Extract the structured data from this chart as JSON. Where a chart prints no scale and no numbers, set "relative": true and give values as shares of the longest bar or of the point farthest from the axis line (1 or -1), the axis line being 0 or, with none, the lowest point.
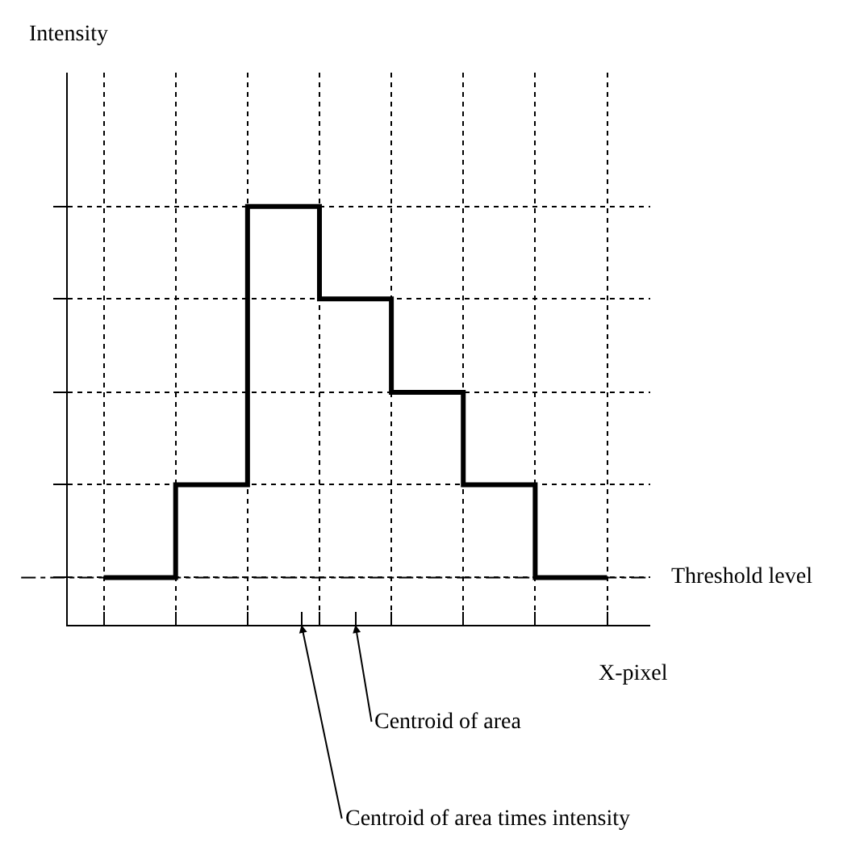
{
  "chart_data": {
    "type": "step",
    "relative": true,
    "xlabel": "X-pixel",
    "categories": [
      null,
      null,
      null,
      null,
      null,
      null,
      null,
      null
    ],
    "series": [
      {
        "color": "#000000",
        "values": [
          0.113,
          0.335,
          1,
          0.779,
          0.556,
          0.335,
          0.113,
          0.113
        ]
      }
    ],
    "ref_lines": [
      {
        "axis": "y",
        "value": 0.113,
        "label": "Threshold level",
        "line_style": "dashdot",
        "color": "#000000"
      }
    ],
    "annotations": [
      "Intensity",
      "Centroid of area",
      "Centroid of area times intensity"
    ],
    "grid": true,
    "legend": false,
    "marker": "none",
    "line_style": "solid"
  }
}
